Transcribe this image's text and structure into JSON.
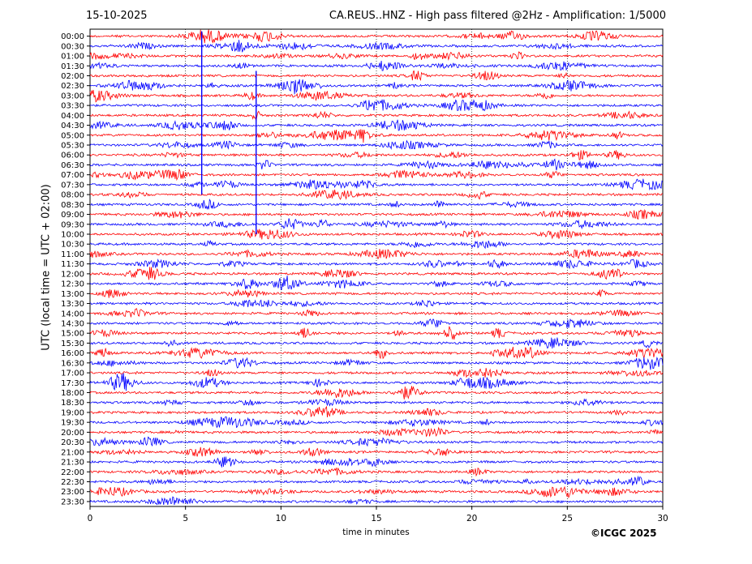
{
  "header": {
    "date": "15-10-2025",
    "title": "CA.REUS..HNZ - High pass filtered @2Hz - Amplification: 1/5000"
  },
  "footer": {
    "copyright": "©ICGC 2025"
  },
  "colors": {
    "trace_a": "#ff0000",
    "trace_b": "#0000ff",
    "grid": "#000000"
  },
  "chart_data": {
    "type": "line",
    "xlabel": "time in minutes",
    "ylabel": "UTC (local time = UTC + 02:00)",
    "xlim": [
      0,
      30
    ],
    "x_ticks": [
      0,
      5,
      10,
      15,
      20,
      25,
      30
    ],
    "x_grid": "dotted vertical lines at each 5 minutes",
    "color_order": [
      "trace_a",
      "trace_b"
    ],
    "rows": [
      "00:00",
      "00:30",
      "01:00",
      "01:30",
      "02:00",
      "02:30",
      "03:00",
      "03:30",
      "04:00",
      "04:30",
      "05:00",
      "05:30",
      "06:00",
      "06:30",
      "07:00",
      "07:30",
      "08:00",
      "08:30",
      "09:00",
      "09:30",
      "10:00",
      "10:30",
      "11:00",
      "11:30",
      "12:00",
      "12:30",
      "13:00",
      "13:30",
      "14:00",
      "14:30",
      "15:00",
      "15:30",
      "16:00",
      "16:30",
      "17:00",
      "17:30",
      "18:00",
      "18:30",
      "19:00",
      "19:30",
      "20:00",
      "20:30",
      "21:00",
      "21:30",
      "22:00",
      "22:30",
      "23:00",
      "23:30"
    ]
  }
}
